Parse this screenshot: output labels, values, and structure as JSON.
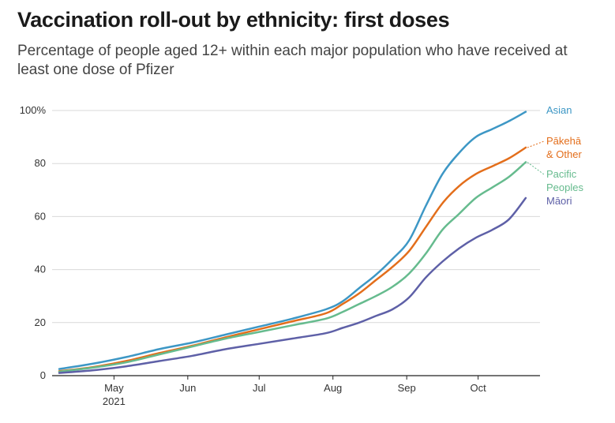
{
  "title": "Vaccination roll-out by ethnicity: first doses",
  "subtitle": "Percentage of people aged 12+ within each major population who have received at least one dose of Pfizer",
  "chart_data": {
    "type": "line",
    "title": "Vaccination roll-out by ethnicity: first doses",
    "subtitle": "Percentage of people aged 12+ within each major population who have received at least one dose of Pfizer",
    "xlabel": "",
    "ylabel": "",
    "ylim": [
      0,
      100
    ],
    "yticks": [
      {
        "value": 0,
        "label": "0"
      },
      {
        "value": 20,
        "label": "20"
      },
      {
        "value": 40,
        "label": "40"
      },
      {
        "value": 60,
        "label": "60"
      },
      {
        "value": 80,
        "label": "80"
      },
      {
        "value": 100,
        "label": "100%"
      }
    ],
    "xlim": [
      "2021-04-05",
      "2021-10-27"
    ],
    "xticks": [
      {
        "date": "2021-05-01",
        "label": "May",
        "sublabel": "2021"
      },
      {
        "date": "2021-06-01",
        "label": "Jun"
      },
      {
        "date": "2021-07-01",
        "label": "Jul"
      },
      {
        "date": "2021-08-01",
        "label": "Aug"
      },
      {
        "date": "2021-09-01",
        "label": "Sep"
      },
      {
        "date": "2021-10-01",
        "label": "Oct"
      }
    ],
    "grid": {
      "horizontal": true,
      "vertical": false
    },
    "x": [
      "2021-04-08",
      "2021-04-22",
      "2021-05-06",
      "2021-05-20",
      "2021-06-03",
      "2021-06-17",
      "2021-07-01",
      "2021-07-15",
      "2021-07-29",
      "2021-08-05",
      "2021-08-12",
      "2021-08-19",
      "2021-08-26",
      "2021-09-02",
      "2021-09-09",
      "2021-09-16",
      "2021-09-23",
      "2021-09-30",
      "2021-10-07",
      "2021-10-14",
      "2021-10-21"
    ],
    "series": [
      {
        "name": "Asian",
        "color": "#3d97c5",
        "values": [
          2.5,
          4.5,
          7,
          10,
          12.5,
          15.5,
          18.5,
          21.5,
          25,
          28,
          33,
          38,
          44,
          51,
          64,
          76,
          84,
          90,
          93,
          96,
          99.5
        ]
      },
      {
        "name": "Pākehā & Other",
        "color": "#e36e1b",
        "values": [
          1.7,
          3.2,
          5.5,
          8.5,
          11.3,
          14.5,
          17.5,
          20.5,
          23.5,
          27,
          31,
          36,
          41,
          47,
          56,
          65,
          71.5,
          76,
          79,
          82,
          86
        ]
      },
      {
        "name": "Pacific Peoples",
        "color": "#66bb8e",
        "values": [
          1.5,
          3,
          5,
          8,
          11,
          14,
          16.5,
          19,
          21.5,
          24,
          27,
          30,
          33.5,
          38.5,
          46,
          55,
          61,
          67,
          71,
          75,
          80.5
        ]
      },
      {
        "name": "Māori",
        "color": "#5e60a7",
        "values": [
          1,
          2,
          3.5,
          5.5,
          7.5,
          10,
          12,
          14,
          16,
          18,
          20,
          22.5,
          25,
          29.5,
          37,
          43,
          48,
          52,
          55,
          59,
          67
        ]
      }
    ],
    "series_label_lines": {
      "Asian": [
        "Asian"
      ],
      "Pākehā & Other": [
        "Pākehā",
        "& Other"
      ],
      "Pacific Peoples": [
        "Pacific",
        "Peoples"
      ],
      "Māori": [
        "Māori"
      ]
    }
  }
}
